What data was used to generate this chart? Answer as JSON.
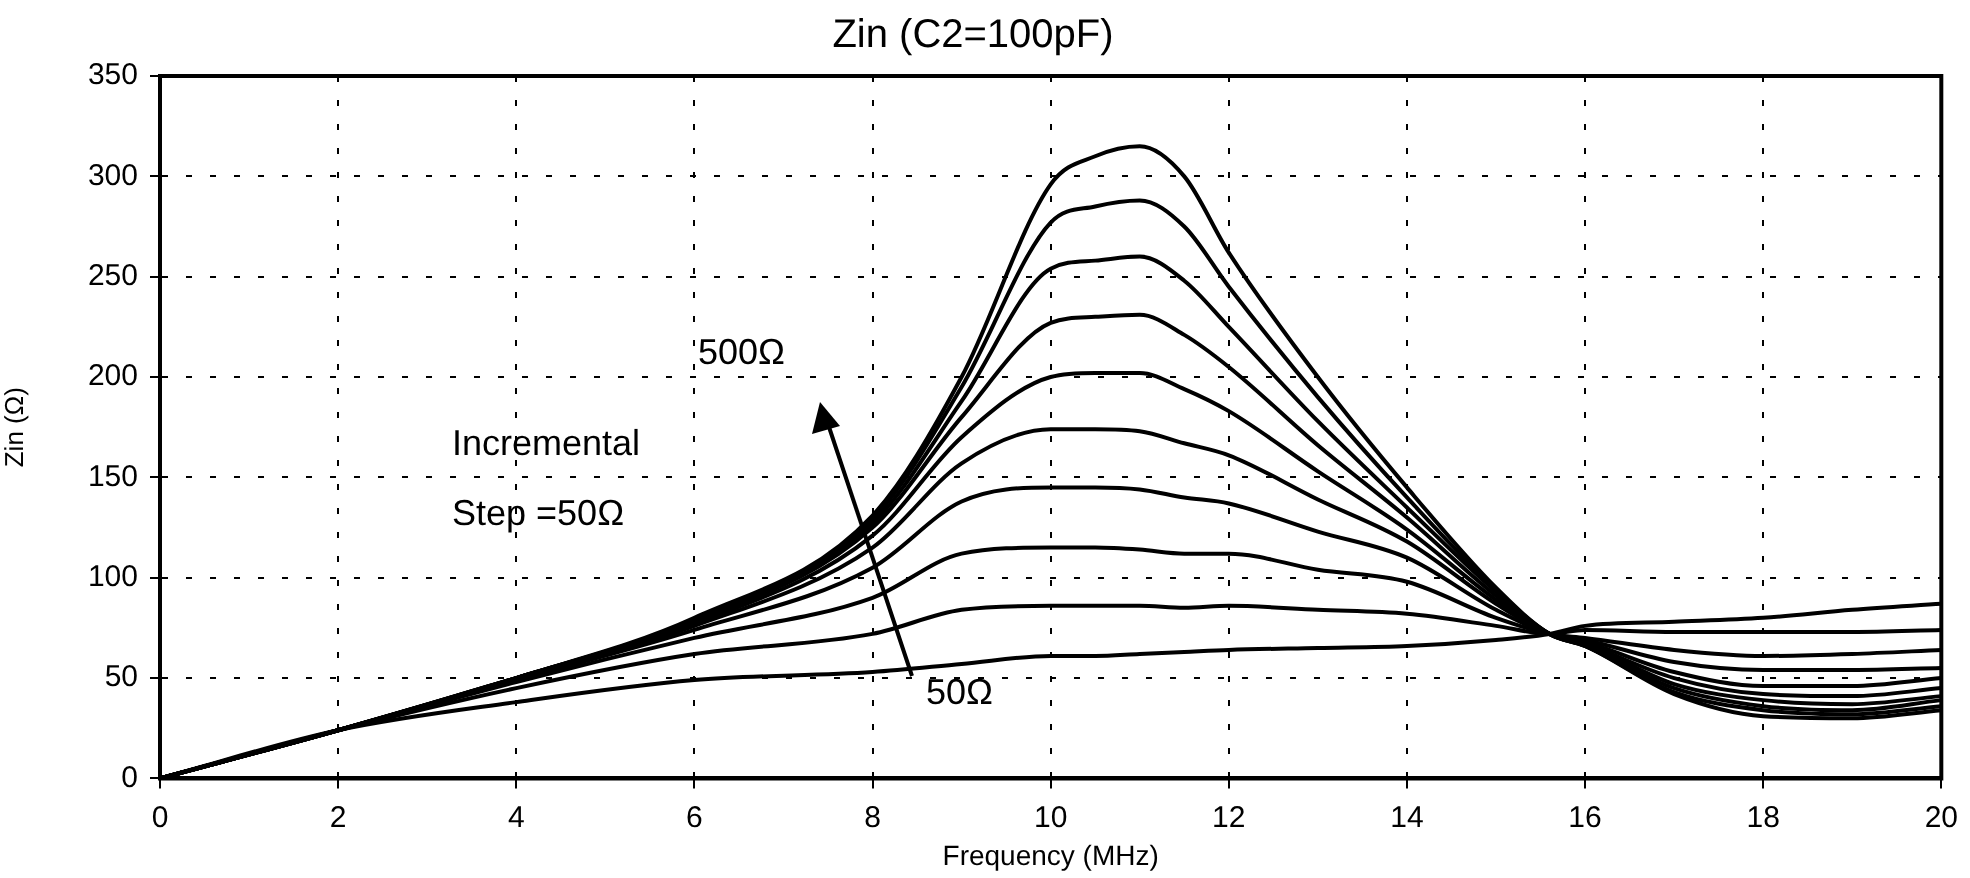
{
  "chart_data": {
    "type": "line",
    "title": "Zin (C2=100pF)",
    "xlabel": "Frequency (MHz)",
    "ylabel": "Zin (Ω)",
    "x": [
      0,
      2,
      4,
      6,
      8,
      9,
      10,
      10.5,
      11,
      11.5,
      12,
      13,
      14,
      15,
      15.6,
      16,
      17,
      18,
      19,
      20
    ],
    "xlim": [
      0,
      20
    ],
    "xticks": [
      0,
      2,
      4,
      6,
      8,
      10,
      12,
      14,
      16,
      18,
      20
    ],
    "ylim": [
      0,
      350
    ],
    "yticks": [
      0,
      50,
      100,
      150,
      200,
      250,
      300,
      350
    ],
    "grid": true,
    "legend": false,
    "marker": "none",
    "line_style": "solid",
    "series": [
      {
        "color": "#000000",
        "values": [
          0,
          24,
          38,
          49,
          53,
          57,
          61,
          61,
          62,
          63,
          64,
          65,
          66,
          69,
          72,
          76,
          78,
          80,
          84,
          87
        ]
      },
      {
        "color": "#000000",
        "values": [
          0,
          24,
          45,
          62,
          72,
          84,
          86,
          86,
          86,
          85,
          86,
          84,
          82,
          76,
          72,
          74,
          73,
          73,
          73,
          74
        ]
      },
      {
        "color": "#000000",
        "values": [
          0,
          24,
          48,
          70,
          90,
          112,
          115,
          115,
          114,
          112,
          112,
          104,
          98,
          80,
          72,
          70,
          64,
          61,
          62,
          64
        ]
      },
      {
        "color": "#000000",
        "values": [
          0,
          24,
          49,
          74,
          105,
          138,
          145,
          145,
          144,
          140,
          137,
          123,
          110,
          84,
          72,
          69,
          58,
          54,
          54,
          55
        ]
      },
      {
        "color": "#000000",
        "values": [
          0,
          24,
          50,
          76,
          115,
          157,
          174,
          174,
          173,
          167,
          161,
          139,
          118,
          87,
          72,
          68,
          53,
          46,
          46,
          50
        ]
      },
      {
        "color": "#000000",
        "values": [
          0,
          24,
          50,
          77,
          121,
          170,
          200,
          202,
          202,
          194,
          183,
          153,
          124,
          89,
          72,
          67,
          50,
          42,
          41,
          45
        ]
      },
      {
        "color": "#000000",
        "values": [
          0,
          24,
          50,
          78,
          125,
          180,
          227,
          230,
          231,
          221,
          205,
          166,
          130,
          91,
          72,
          67,
          47,
          39,
          37,
          41
        ]
      },
      {
        "color": "#000000",
        "values": [
          0,
          24,
          50,
          79,
          127,
          188,
          254,
          258,
          260,
          248,
          225,
          178,
          135,
          93,
          72,
          66,
          45,
          36,
          34,
          39
        ]
      },
      {
        "color": "#000000",
        "values": [
          0,
          24,
          50,
          79,
          129,
          195,
          277,
          285,
          288,
          275,
          245,
          190,
          140,
          94,
          72,
          66,
          43,
          34,
          32,
          36
        ]
      },
      {
        "color": "#000000",
        "values": [
          0,
          24,
          50,
          80,
          131,
          200,
          296,
          310,
          315,
          300,
          262,
          200,
          145,
          95,
          72,
          66,
          42,
          31,
          30,
          34
        ]
      }
    ],
    "annotations": [
      "500Ω",
      "Incremental\nStep =50Ω",
      "50Ω"
    ]
  }
}
